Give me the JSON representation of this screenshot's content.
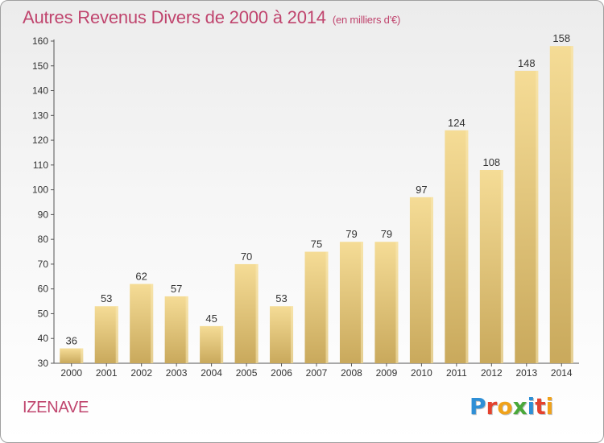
{
  "title": {
    "main": "Autres Revenus Divers de 2000 à 2014",
    "unit": "(en milliers d'€)"
  },
  "place": "IZENAVE",
  "brand": {
    "text": "Proxiti",
    "letter_colors": [
      "#2e8fd6",
      "#e4422e",
      "#f0a21a",
      "#4aa83a",
      "#2e8fd6",
      "#e4422e",
      "#f0a21a"
    ]
  },
  "colors": {
    "title": "#c0456e",
    "bar_light": "#f5dc96",
    "bar_dark": "#c9a95c"
  },
  "chart_data": {
    "type": "bar",
    "title": "Autres Revenus Divers de 2000 à 2014",
    "subtitle": "(en milliers d'€)",
    "xlabel": "",
    "ylabel": "",
    "ylim": [
      30,
      160
    ],
    "yticks": [
      30,
      40,
      50,
      60,
      70,
      80,
      90,
      100,
      110,
      120,
      130,
      140,
      150,
      160
    ],
    "grid": false,
    "categories": [
      "2000",
      "2001",
      "2002",
      "2003",
      "2004",
      "2005",
      "2006",
      "2007",
      "2008",
      "2009",
      "2010",
      "2011",
      "2012",
      "2013",
      "2014"
    ],
    "values": [
      36,
      53,
      62,
      57,
      45,
      70,
      53,
      75,
      79,
      79,
      97,
      124,
      108,
      148,
      158
    ],
    "value_labels": [
      "36",
      "53",
      "62",
      "57",
      "45",
      "70",
      "53",
      "75",
      "79",
      "79",
      "97",
      "124",
      "108",
      "148",
      "158"
    ]
  }
}
